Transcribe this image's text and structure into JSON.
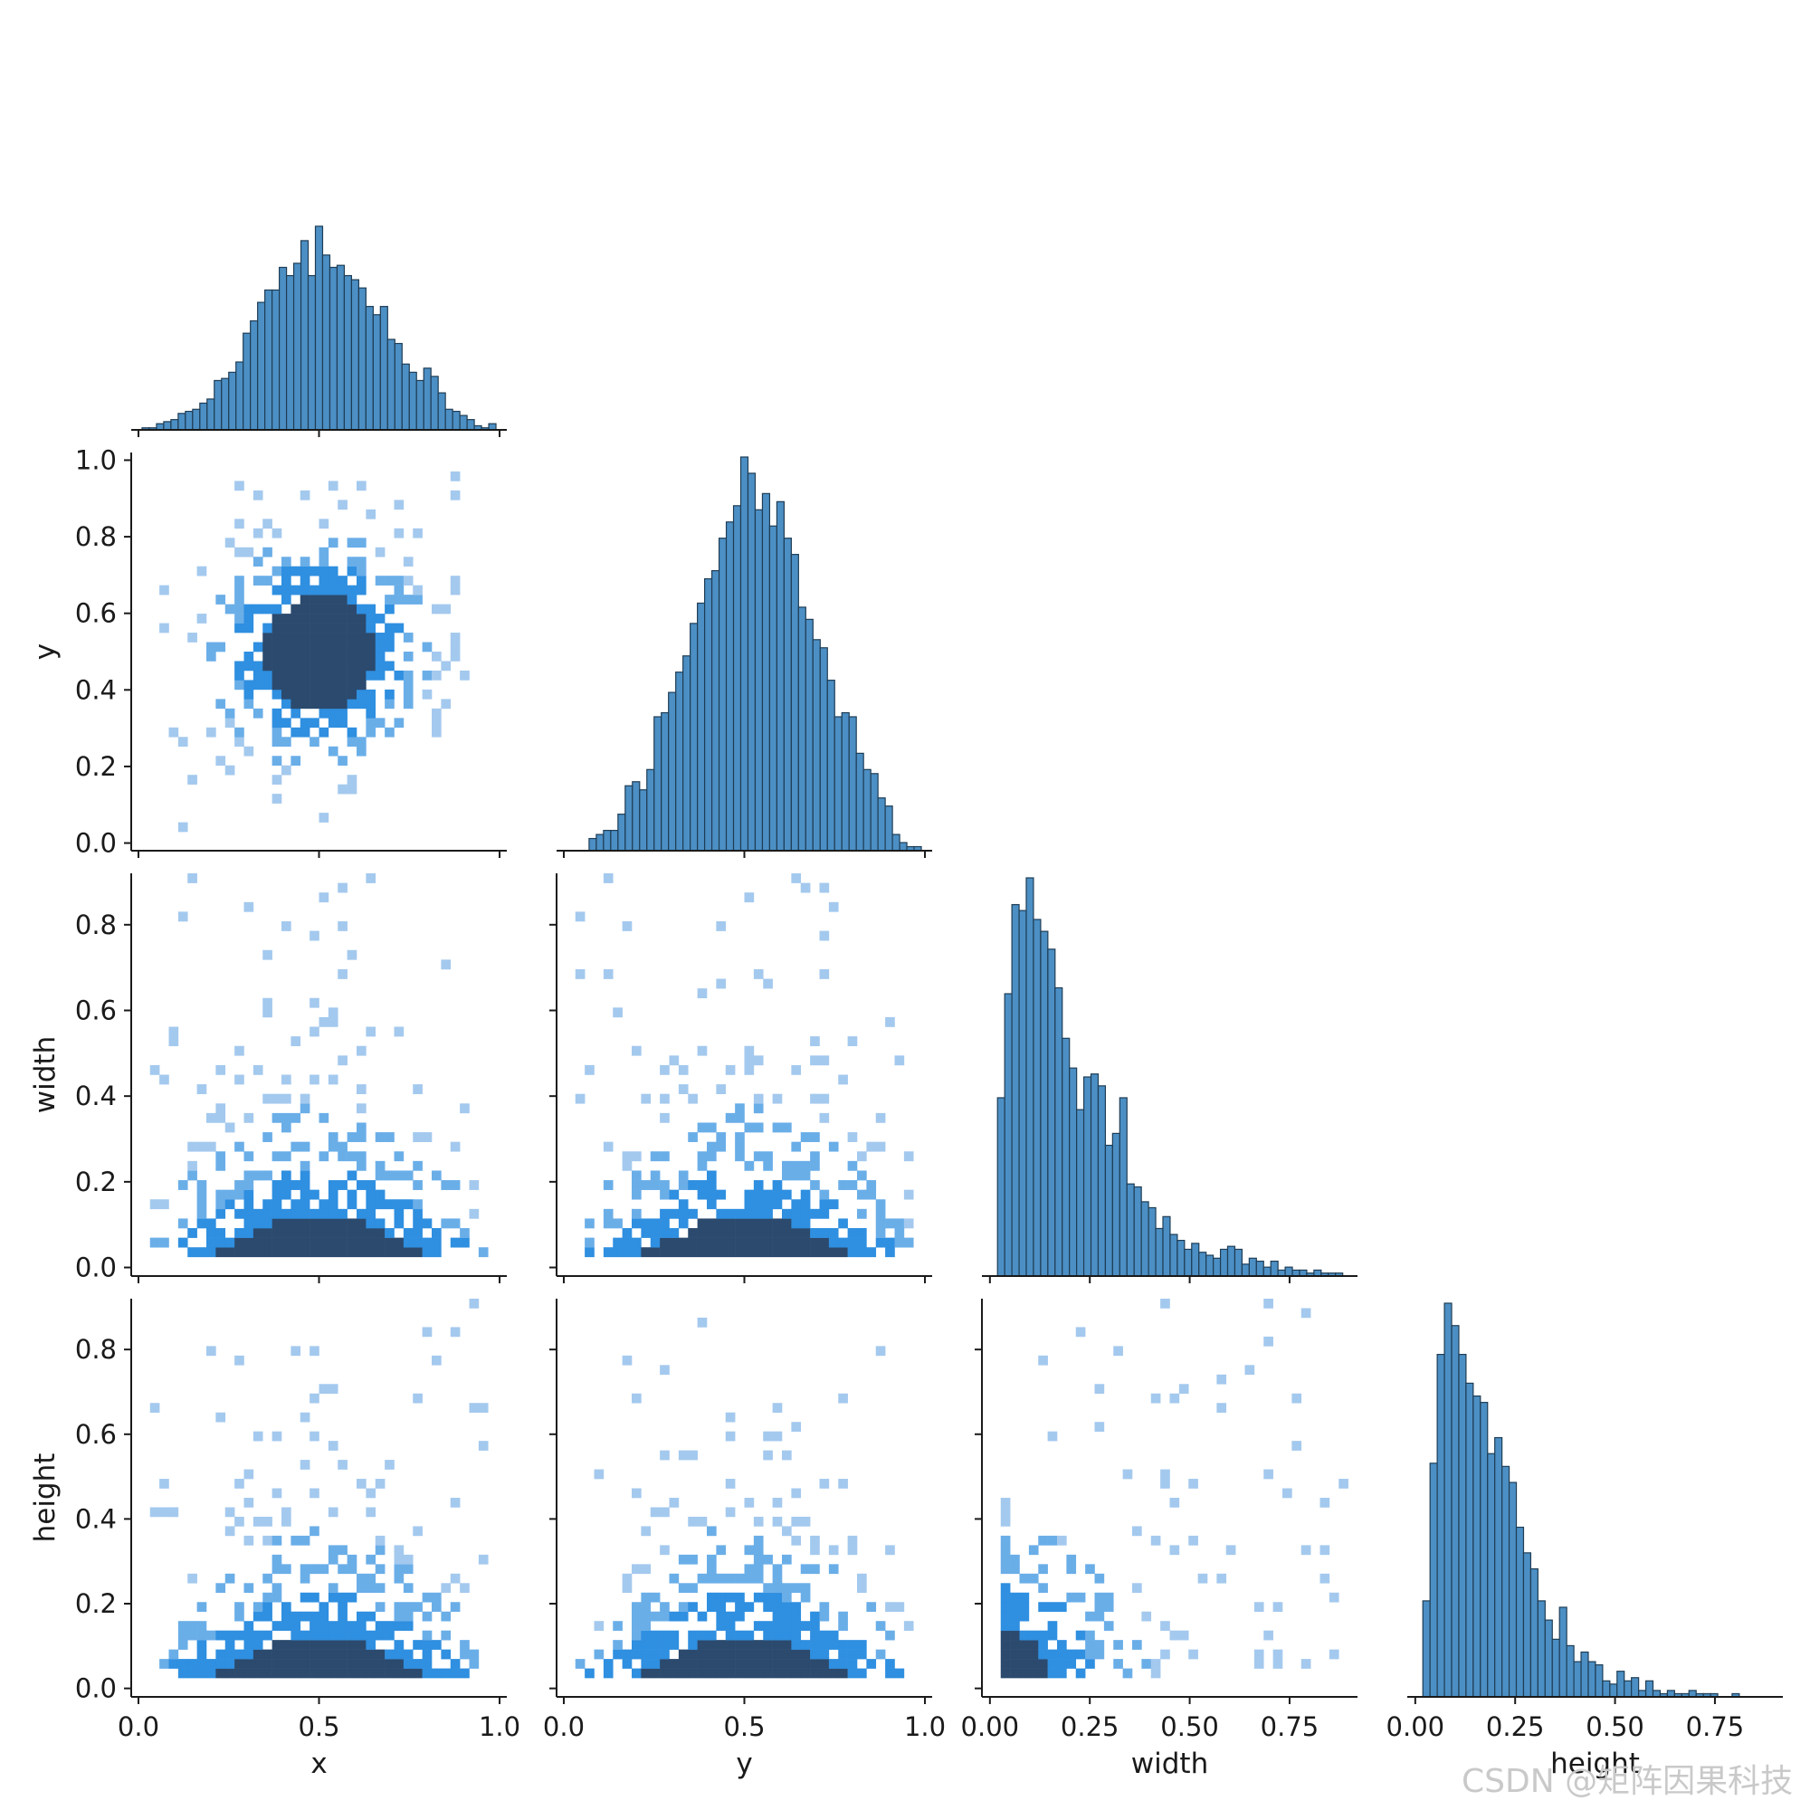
{
  "figure": {
    "watermark": "CSDN @矩阵因果科技"
  },
  "chart_data": [
    {
      "panel": "x-x",
      "type": "bar",
      "xlim": [
        -0.02,
        1.02
      ],
      "xticks": [
        "0.0",
        "0.5",
        "1.0"
      ],
      "xlabel": "x",
      "bins": [
        0.02,
        0.04,
        0.06,
        0.08,
        0.1,
        0.12,
        0.14,
        0.16,
        0.18,
        0.2,
        0.22,
        0.24,
        0.26,
        0.28,
        0.3,
        0.32,
        0.34,
        0.36,
        0.38,
        0.4,
        0.42,
        0.44,
        0.46,
        0.48,
        0.5,
        0.52,
        0.54,
        0.56,
        0.58,
        0.6,
        0.62,
        0.64,
        0.66,
        0.68,
        0.7,
        0.72,
        0.74,
        0.76,
        0.78,
        0.8,
        0.82,
        0.84,
        0.86,
        0.88,
        0.9,
        0.92,
        0.94,
        0.96,
        0.98
      ],
      "values": [
        1,
        1,
        3,
        4,
        5,
        8,
        9,
        10,
        13,
        15,
        24,
        25,
        28,
        33,
        47,
        53,
        62,
        68,
        68,
        79,
        75,
        81,
        92,
        75,
        99,
        85,
        79,
        80,
        75,
        73,
        69,
        60,
        56,
        60,
        44,
        42,
        32,
        28,
        24,
        30,
        26,
        18,
        10,
        9,
        7,
        5,
        2,
        1,
        3
      ]
    },
    {
      "panel": "y-y",
      "type": "bar",
      "xlim": [
        -0.02,
        1.02
      ],
      "xticks": [
        "0.0",
        "0.5",
        "1.0"
      ],
      "xlabel": "y",
      "bins": [
        0.08,
        0.1,
        0.12,
        0.14,
        0.16,
        0.18,
        0.2,
        0.22,
        0.24,
        0.26,
        0.28,
        0.3,
        0.32,
        0.34,
        0.36,
        0.38,
        0.4,
        0.42,
        0.44,
        0.46,
        0.48,
        0.5,
        0.52,
        0.54,
        0.56,
        0.58,
        0.6,
        0.62,
        0.64,
        0.66,
        0.68,
        0.7,
        0.72,
        0.74,
        0.76,
        0.78,
        0.8,
        0.82,
        0.84,
        0.86,
        0.88,
        0.9,
        0.92,
        0.94,
        0.96,
        0.98
      ],
      "values": [
        3,
        4,
        5,
        5,
        9,
        16,
        17,
        15,
        20,
        33,
        34,
        39,
        44,
        48,
        56,
        61,
        67,
        69,
        77,
        81,
        85,
        97,
        93,
        84,
        88,
        80,
        86,
        77,
        73,
        60,
        57,
        52,
        50,
        42,
        33,
        34,
        33,
        24,
        20,
        19,
        13,
        11,
        4,
        2,
        1,
        1
      ]
    },
    {
      "panel": "width-width",
      "type": "bar",
      "xlim": [
        -0.02,
        0.92
      ],
      "xticks": [
        "0.00",
        "0.25",
        "0.50",
        "0.75"
      ],
      "xlabel": "width",
      "bins": [
        0.028,
        0.046,
        0.064,
        0.082,
        0.1,
        0.118,
        0.136,
        0.154,
        0.172,
        0.19,
        0.208,
        0.226,
        0.244,
        0.262,
        0.28,
        0.298,
        0.316,
        0.334,
        0.352,
        0.37,
        0.388,
        0.406,
        0.424,
        0.442,
        0.46,
        0.478,
        0.496,
        0.514,
        0.532,
        0.55,
        0.568,
        0.586,
        0.604,
        0.622,
        0.64,
        0.658,
        0.676,
        0.694,
        0.712,
        0.73,
        0.748,
        0.766,
        0.784,
        0.802,
        0.82,
        0.838,
        0.856,
        0.874
      ],
      "values": [
        60,
        95,
        125,
        123,
        134,
        120,
        116,
        110,
        97,
        80,
        70,
        56,
        67,
        68,
        64,
        44,
        48,
        60,
        31,
        30,
        25,
        23,
        16,
        20,
        14,
        12,
        9,
        11,
        8,
        7,
        6,
        9,
        10,
        9,
        4,
        6,
        5,
        3,
        5,
        2,
        3,
        2,
        2,
        1,
        2,
        1,
        1,
        1
      ]
    },
    {
      "panel": "height-height",
      "type": "bar",
      "xlim": [
        -0.02,
        0.92
      ],
      "xticks": [
        "0.00",
        "0.25",
        "0.50",
        "0.75"
      ],
      "xlabel": "height",
      "bins": [
        0.028,
        0.046,
        0.064,
        0.082,
        0.1,
        0.118,
        0.136,
        0.154,
        0.172,
        0.19,
        0.208,
        0.226,
        0.244,
        0.262,
        0.28,
        0.298,
        0.316,
        0.334,
        0.352,
        0.37,
        0.388,
        0.406,
        0.424,
        0.442,
        0.46,
        0.478,
        0.496,
        0.514,
        0.532,
        0.55,
        0.568,
        0.586,
        0.604,
        0.622,
        0.64,
        0.658,
        0.676,
        0.694,
        0.712,
        0.73,
        0.748,
        0.766,
        0.784,
        0.802,
        0.82,
        0.838,
        0.856,
        0.874
      ],
      "values": [
        30,
        73,
        107,
        123,
        116,
        107,
        98,
        94,
        92,
        76,
        81,
        72,
        67,
        53,
        45,
        40,
        30,
        24,
        18,
        28,
        16,
        11,
        14,
        11,
        10,
        5,
        4,
        8,
        5,
        6,
        2,
        5,
        2,
        1,
        2,
        1,
        1,
        2,
        1,
        1,
        1,
        0,
        0,
        1,
        0,
        0,
        0,
        0
      ]
    },
    {
      "panel": "x-y",
      "type": "heatmap",
      "x_var": "x",
      "y_var": "y",
      "xlim": [
        -0.02,
        1.02
      ],
      "ylim": [
        -0.02,
        1.02
      ],
      "yticks": [
        "0.0",
        "0.2",
        "0.4",
        "0.6",
        "0.8",
        "1.0"
      ],
      "ylabel": "y",
      "x_center": 0.5,
      "y_center": 0.5,
      "x_spread": 0.15,
      "y_spread": 0.15
    },
    {
      "panel": "x-width",
      "type": "heatmap",
      "x_var": "x",
      "y_var": "width",
      "xlim": [
        -0.02,
        1.02
      ],
      "ylim": [
        -0.02,
        0.92
      ],
      "yticks": [
        "0.0",
        "0.2",
        "0.4",
        "0.6",
        "0.8"
      ],
      "ylabel": "width",
      "x_center": 0.5,
      "y_center": 0.1,
      "x_spread": 0.16,
      "y_spread": 0.17
    },
    {
      "panel": "y-width",
      "type": "heatmap",
      "x_var": "y",
      "y_var": "width",
      "xlim": [
        -0.02,
        1.02
      ],
      "ylim": [
        -0.02,
        0.92
      ],
      "x_center": 0.5,
      "y_center": 0.1,
      "x_spread": 0.16,
      "y_spread": 0.17
    },
    {
      "panel": "x-height",
      "type": "heatmap",
      "x_var": "x",
      "y_var": "height",
      "xlim": [
        -0.02,
        1.02
      ],
      "ylim": [
        -0.02,
        0.92
      ],
      "yticks": [
        "0.0",
        "0.2",
        "0.4",
        "0.6",
        "0.8"
      ],
      "ylabel": "height",
      "x_center": 0.5,
      "y_center": 0.1,
      "x_spread": 0.16,
      "y_spread": 0.17
    },
    {
      "panel": "y-height",
      "type": "heatmap",
      "x_var": "y",
      "y_var": "height",
      "xlim": [
        -0.02,
        1.02
      ],
      "ylim": [
        -0.02,
        0.92
      ],
      "x_center": 0.5,
      "y_center": 0.1,
      "x_spread": 0.16,
      "y_spread": 0.17
    },
    {
      "panel": "width-height",
      "type": "heatmap",
      "x_var": "width",
      "y_var": "height",
      "xlim": [
        -0.02,
        0.92
      ],
      "ylim": [
        -0.02,
        0.92
      ],
      "x_center": 0.08,
      "y_center": 0.08,
      "x_spread": 0.15,
      "y_spread": 0.15
    }
  ],
  "colors": {
    "bar_fill": "#4c8fc4",
    "bar_edge": "#1f3d55",
    "heat_light": "#a4c9ee",
    "heat_mid": "#2f8fe0",
    "heat_dark": "#2b4a6e",
    "axis": "#1a1a1a"
  }
}
